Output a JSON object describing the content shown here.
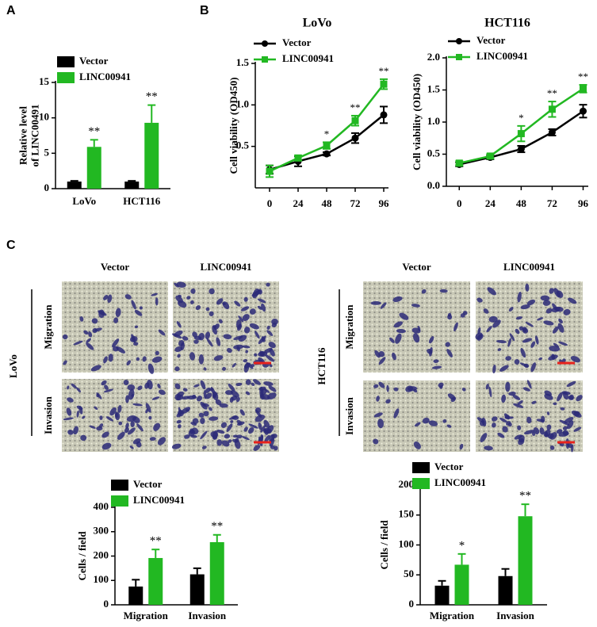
{
  "panel_labels": [
    "A",
    "B",
    "C"
  ],
  "chart_data": [
    {
      "type": "bar",
      "categories": [
        "LoVo",
        "HCT116"
      ],
      "ylabel": [
        "Relative level",
        "of LINC00491"
      ],
      "ylim": [
        0,
        15
      ],
      "yticks": [
        0,
        5,
        10,
        15
      ],
      "series": [
        {
          "name": "Vector",
          "color": "#000000",
          "values": [
            1,
            1
          ],
          "errors": [
            0.1,
            0.1
          ],
          "annotations": [
            null,
            null
          ]
        },
        {
          "name": "LINC00941",
          "color": "#22b822",
          "values": [
            5.9,
            9.3
          ],
          "errors": [
            1.0,
            2.5
          ],
          "annotations": [
            "**",
            "**"
          ]
        }
      ]
    },
    {
      "type": "line",
      "title": "LoVo",
      "ylabel": "Cell viability (OD450)",
      "x": [
        0,
        24,
        48,
        72,
        96
      ],
      "xlim": [
        -12,
        100
      ],
      "xticks": [
        0,
        24,
        48,
        72,
        96
      ],
      "ylim": [
        0,
        1.5
      ],
      "yticks": [
        0.5,
        {
          "value": 1,
          "label": "1.0"
        },
        1.5
      ],
      "series": [
        {
          "name": "Vector",
          "color": "#000000",
          "marker": "circle",
          "values": [
            0.22,
            0.32,
            0.41,
            0.6,
            0.88
          ],
          "errors": [
            0.05,
            0.06,
            0.02,
            0.06,
            0.1
          ],
          "annotations": [
            null,
            null,
            null,
            null,
            null
          ]
        },
        {
          "name": "LINC00941",
          "color": "#22b822",
          "marker": "square",
          "values": [
            0.2,
            0.36,
            0.51,
            0.81,
            1.25
          ],
          "errors": [
            0.07,
            0.03,
            0.04,
            0.06,
            0.06
          ],
          "annotations": [
            null,
            null,
            "*",
            "**",
            "**"
          ]
        }
      ]
    },
    {
      "type": "line",
      "title": "HCT116",
      "ylabel": "Cell viability (OD450)",
      "x": [
        0,
        24,
        48,
        72,
        96
      ],
      "xlim": [
        -10,
        100
      ],
      "xticks": [
        0,
        24,
        48,
        72,
        96
      ],
      "ylim": [
        0,
        2
      ],
      "yticks": [
        {
          "value": 0,
          "label": "0.0"
        },
        0.5,
        {
          "value": 1,
          "label": "1.0"
        },
        1.5,
        {
          "value": 2,
          "label": "2.0"
        }
      ],
      "series": [
        {
          "name": "Vector",
          "color": "#000000",
          "marker": "circle",
          "values": [
            0.34,
            0.45,
            0.58,
            0.84,
            1.17
          ],
          "errors": [
            0.03,
            0.03,
            0.05,
            0.05,
            0.1
          ],
          "annotations": [
            null,
            null,
            null,
            null,
            null
          ]
        },
        {
          "name": "LINC00941",
          "color": "#22b822",
          "marker": "square",
          "values": [
            0.36,
            0.47,
            0.82,
            1.2,
            1.52
          ],
          "errors": [
            0.03,
            0.03,
            0.12,
            0.12,
            0.06
          ],
          "annotations": [
            null,
            null,
            "*",
            "**",
            "**"
          ]
        }
      ]
    },
    {
      "type": "bar",
      "categories": [
        "Migration",
        "Invasion"
      ],
      "ylabel": "Cells / field",
      "ylim": [
        0,
        400
      ],
      "yticks": [
        0,
        100,
        200,
        300,
        400
      ],
      "series": [
        {
          "name": "Vector",
          "color": "#000000",
          "values": [
            75,
            125
          ],
          "errors": [
            28,
            25
          ],
          "annotations": [
            null,
            null
          ]
        },
        {
          "name": "LINC00941",
          "color": "#22b822",
          "values": [
            192,
            257
          ],
          "errors": [
            35,
            30
          ],
          "annotations": [
            "**",
            "**"
          ]
        }
      ]
    },
    {
      "type": "bar",
      "categories": [
        "Migration",
        "Invasion"
      ],
      "ylabel": "Cells / field",
      "ylim": [
        0,
        200
      ],
      "yticks": [
        0,
        50,
        100,
        150,
        200
      ],
      "series": [
        {
          "name": "Vector",
          "color": "#000000",
          "values": [
            32,
            48
          ],
          "errors": [
            8,
            12
          ],
          "annotations": [
            null,
            null
          ]
        },
        {
          "name": "LINC00941",
          "color": "#22b822",
          "values": [
            67,
            148
          ],
          "errors": [
            18,
            20
          ],
          "annotations": [
            "*",
            "**"
          ]
        }
      ]
    }
  ],
  "micrographs": [
    {
      "cell_line": "LoVo",
      "columns": [
        "Vector",
        "LINC00941"
      ],
      "rows": [
        "Migration",
        "Invasion"
      ]
    },
    {
      "cell_line": "HCT116",
      "columns": [
        "Vector",
        "LINC00941"
      ],
      "rows": [
        "Migration",
        "Invasion"
      ]
    }
  ]
}
